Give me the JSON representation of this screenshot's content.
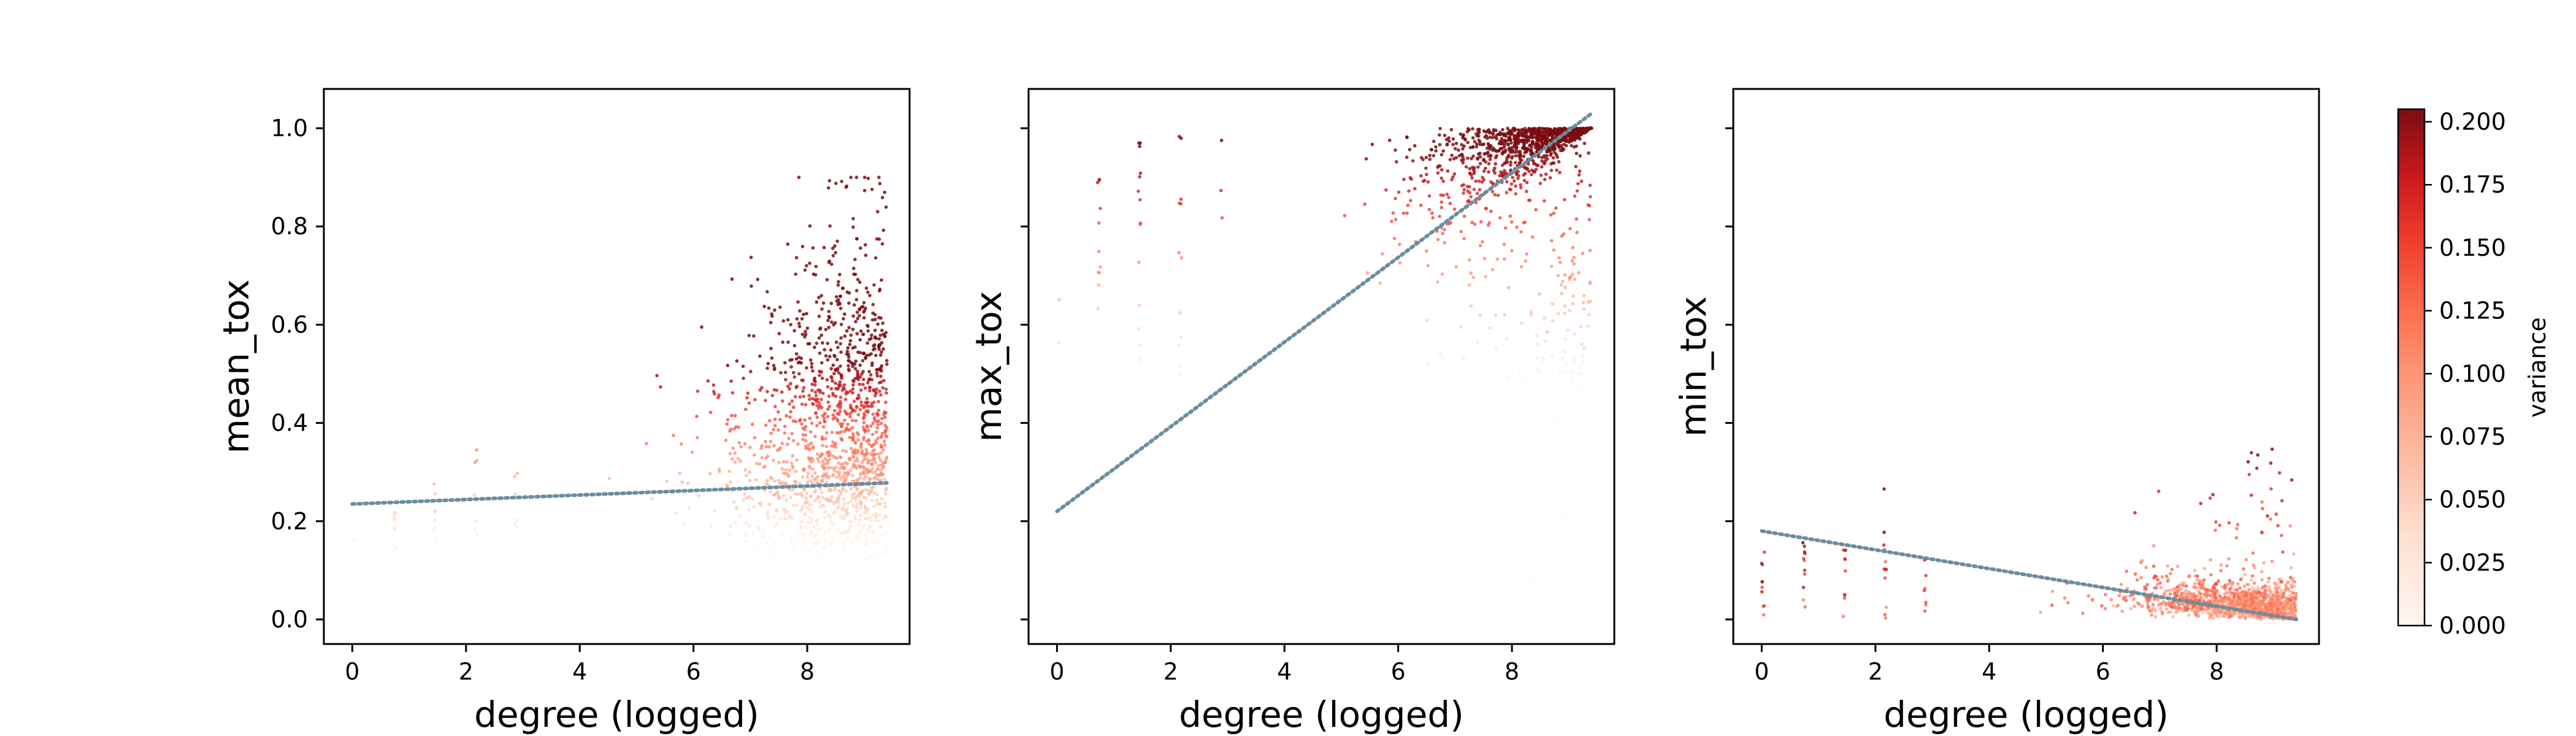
{
  "chart_data": [
    {
      "type": "scatter",
      "xlabel": "degree (logged)",
      "ylabel": "mean_tox",
      "xlim": [
        -0.5,
        9.8
      ],
      "ylim": [
        -0.05,
        1.08
      ],
      "xticks": [
        0,
        2,
        4,
        6,
        8
      ],
      "yticks": [
        0.0,
        0.2,
        0.4,
        0.6,
        0.8,
        1.0
      ],
      "ytick_labels": [
        "0.0",
        "0.2",
        "0.4",
        "0.6",
        "0.8",
        "1.0"
      ],
      "trend_line": {
        "x": [
          0,
          9.4
        ],
        "y": [
          0.235,
          0.278
        ],
        "color": "#6b8e9e",
        "style": "dotted"
      },
      "grid": false
    },
    {
      "type": "scatter",
      "xlabel": "degree (logged)",
      "ylabel": "max_tox",
      "xlim": [
        -0.5,
        9.8
      ],
      "ylim": [
        -0.05,
        1.08
      ],
      "xticks": [
        0,
        2,
        4,
        6,
        8
      ],
      "yticks": [
        0.0,
        0.2,
        0.4,
        0.6,
        0.8,
        1.0
      ],
      "ytick_labels": [],
      "trend_line": {
        "x": [
          0,
          9.4
        ],
        "y": [
          0.22,
          1.03
        ],
        "color": "#6b8e9e",
        "style": "dotted"
      },
      "grid": false
    },
    {
      "type": "scatter",
      "xlabel": "degree (logged)",
      "ylabel": "min_tox",
      "xlim": [
        -0.5,
        9.8
      ],
      "ylim": [
        -0.05,
        1.08
      ],
      "xticks": [
        0,
        2,
        4,
        6,
        8
      ],
      "yticks": [
        0.0,
        0.2,
        0.4,
        0.6,
        0.8,
        1.0
      ],
      "ytick_labels": [],
      "trend_line": {
        "x": [
          0,
          9.4
        ],
        "y": [
          0.18,
          0.0
        ],
        "color": "#6b8e9e",
        "style": "dotted"
      },
      "grid": false
    }
  ],
  "colorbar": {
    "label": "variance",
    "min": 0.0,
    "max": 0.205,
    "ticks": [
      0.0,
      0.025,
      0.05,
      0.075,
      0.1,
      0.125,
      0.15,
      0.175,
      0.2
    ],
    "tick_labels": [
      "0.000",
      "0.025",
      "0.050",
      "0.075",
      "0.100",
      "0.125",
      "0.150",
      "0.175",
      "0.200"
    ],
    "colormap": "Reds",
    "colors": [
      "#fff5f0",
      "#fdd4c2",
      "#fca082",
      "#fb6a4a",
      "#e32f27",
      "#b11218",
      "#67000d"
    ]
  },
  "x_tick_labels": [
    "0",
    "2",
    "4",
    "6",
    "8"
  ]
}
